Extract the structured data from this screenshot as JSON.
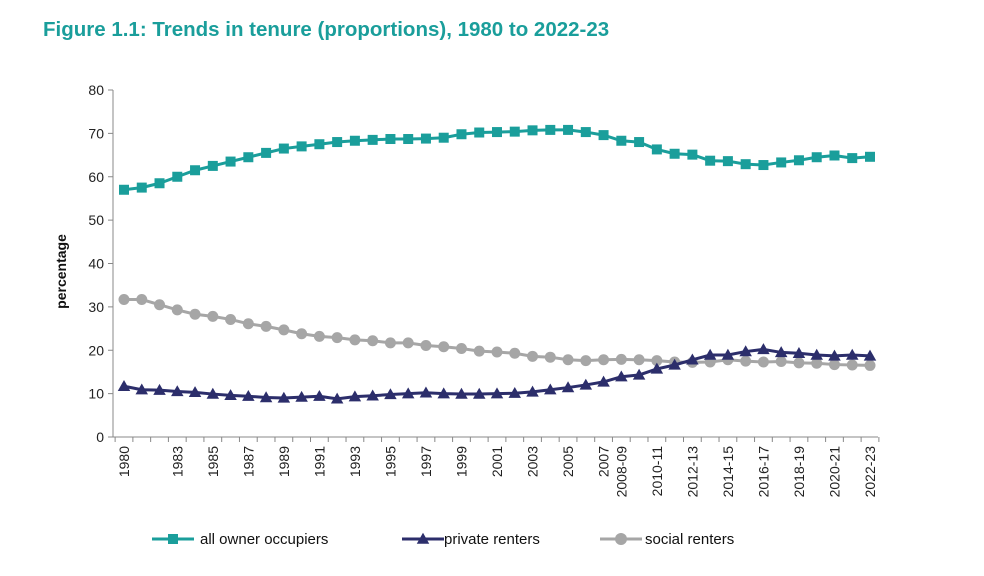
{
  "chart_data": {
    "type": "line",
    "title": "Figure 1.1: Trends in tenure (proportions), 1980 to 2022-23",
    "xlabel": "",
    "ylabel": "percentage",
    "ylim": [
      0,
      80
    ],
    "yticks": [
      0,
      10,
      20,
      30,
      40,
      50,
      60,
      70,
      80
    ],
    "categories": [
      "1980",
      "1981",
      "1982",
      "1983",
      "1984",
      "1985",
      "1986",
      "1987",
      "1988",
      "1989",
      "1990",
      "1991",
      "1992",
      "1993",
      "1994",
      "1995",
      "1996",
      "1997",
      "1998",
      "1999",
      "2000",
      "2001",
      "2002",
      "2003",
      "2004",
      "2005",
      "2006",
      "2007",
      "2008-09",
      "2009-10",
      "2010-11",
      "2011-12",
      "2012-13",
      "2013-14",
      "2014-15",
      "2015-16",
      "2016-17",
      "2017-18",
      "2018-19",
      "2019-20",
      "2020-21",
      "2021-22",
      "2022-23"
    ],
    "tick_labels": [
      "1980",
      "1983",
      "1985",
      "1987",
      "1989",
      "1991",
      "1993",
      "1995",
      "1997",
      "1999",
      "2001",
      "2003",
      "2005",
      "2007",
      "2008-09",
      "2010-11",
      "2012-13",
      "2014-15",
      "2016-17",
      "2018-19",
      "2020-21",
      "2022-23"
    ],
    "series": [
      {
        "name": "all owner occupiers",
        "color": "#1a9e9b",
        "marker": "square",
        "values": [
          57,
          57.5,
          58.5,
          60,
          61.5,
          62.5,
          63.5,
          64.5,
          65.5,
          66.5,
          67,
          67.5,
          68,
          68.3,
          68.5,
          68.7,
          68.7,
          68.8,
          69,
          69.8,
          70.2,
          70.3,
          70.4,
          70.7,
          70.8,
          70.8,
          70.3,
          69.6,
          68.3,
          68,
          66.3,
          65.3,
          65.1,
          63.7,
          63.6,
          62.9,
          62.7,
          63.3,
          63.8,
          64.5,
          64.9,
          64.3,
          64.6
        ]
      },
      {
        "name": "private renters",
        "color": "#2c2e6b",
        "marker": "triangle",
        "values": [
          11.7,
          10.9,
          10.8,
          10.5,
          10.3,
          9.9,
          9.6,
          9.4,
          9.1,
          9,
          9.2,
          9.4,
          8.8,
          9.3,
          9.5,
          9.8,
          10,
          10.2,
          10,
          9.9,
          9.9,
          10,
          10.1,
          10.4,
          10.9,
          11.4,
          12,
          12.7,
          13.9,
          14.3,
          15.7,
          16.6,
          17.8,
          18.9,
          18.9,
          19.7,
          20.2,
          19.5,
          19.3,
          18.9,
          18.7,
          18.9,
          18.7
        ]
      },
      {
        "name": "social renters",
        "color": "#a6a6a6",
        "marker": "circle",
        "values": [
          31.7,
          31.7,
          30.5,
          29.3,
          28.3,
          27.8,
          27.1,
          26.1,
          25.5,
          24.7,
          23.8,
          23.2,
          22.9,
          22.4,
          22.2,
          21.7,
          21.7,
          21.1,
          20.8,
          20.4,
          19.8,
          19.6,
          19.3,
          18.6,
          18.4,
          17.8,
          17.6,
          17.8,
          17.9,
          17.8,
          17.6,
          17.3,
          17.2,
          17.3,
          17.8,
          17.5,
          17.3,
          17.4,
          17.1,
          17,
          16.7,
          16.6,
          16.5
        ]
      }
    ],
    "legend": "bottom",
    "grid": false
  }
}
